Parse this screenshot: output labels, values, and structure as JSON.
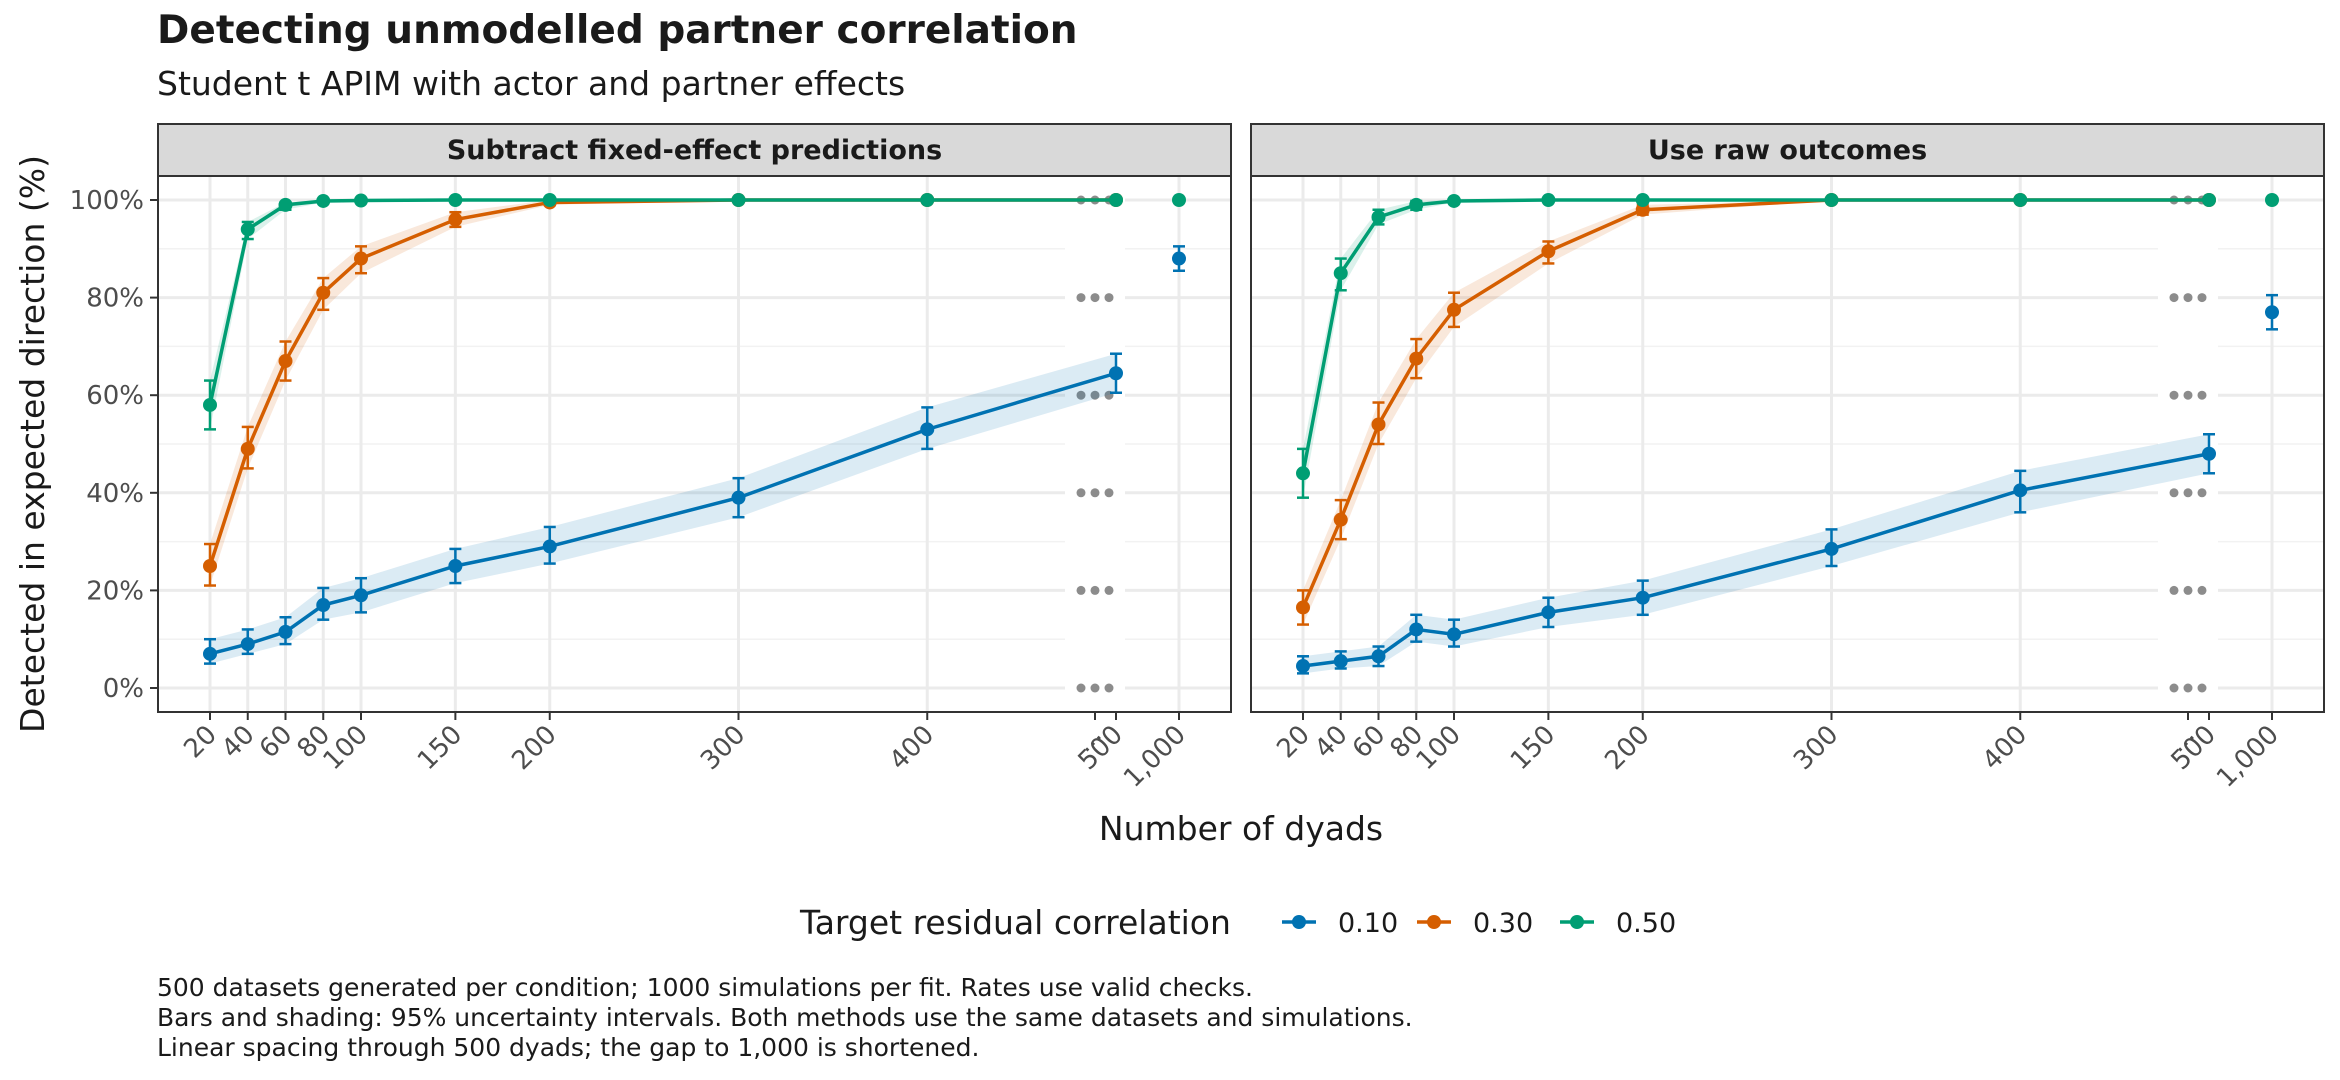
{
  "title": "Detecting unmodelled partner correlation",
  "subtitle": "Student t APIM with actor and partner effects",
  "captions": [
    "500 datasets generated per condition; 1000 simulations per fit. Rates use valid checks.",
    "Bars and shading: 95% uncertainty intervals. Both methods use the same datasets and simulations.",
    "Linear spacing through 500 dyads; the gap to 1,000 is shortened."
  ],
  "colors": {
    "0.10": "#0072b2",
    "0.30": "#d55e00",
    "0.50": "#009e73"
  },
  "chart_data": {
    "type": "line",
    "xlabel": "Number of dyads",
    "ylabel": "Detected in expected direction (%)",
    "x_ticks": [
      "20",
      "40",
      "60",
      "80",
      "100",
      "150",
      "200",
      "300",
      "400",
      "500",
      "...",
      "1,000"
    ],
    "y_ticks": [
      "0%",
      "20%",
      "40%",
      "60%",
      "80%",
      "100%"
    ],
    "ylim": [
      0,
      100
    ],
    "legend": {
      "title": "Target residual correlation",
      "position": "bottom",
      "entries": [
        "0.10",
        "0.30",
        "0.50"
      ]
    },
    "facets": [
      {
        "label": "Subtract fixed-effect predictions",
        "series": [
          {
            "name": "0.10",
            "x": [
              20,
              40,
              60,
              80,
              100,
              150,
              200,
              300,
              400,
              500
            ],
            "y": [
              7,
              9,
              11.5,
              17,
              19,
              25,
              29,
              39,
              53,
              64.5
            ],
            "lo": [
              5,
              7,
              9,
              14,
              15.5,
              21.5,
              25.5,
              35,
              49,
              60.5
            ],
            "hi": [
              10,
              12,
              14.5,
              20.5,
              22.5,
              28.5,
              33,
              43,
              57.5,
              68.5
            ],
            "x_1000": 88,
            "lo_1000": 85.5,
            "hi_1000": 90.5
          },
          {
            "name": "0.30",
            "x": [
              20,
              40,
              60,
              80,
              100,
              150,
              200,
              300,
              400,
              500
            ],
            "y": [
              25,
              49,
              67,
              81,
              88,
              96,
              99.5,
              100,
              100,
              100
            ],
            "lo": [
              21,
              45,
              63,
              77.5,
              85,
              94.5,
              99,
              100,
              100,
              100
            ],
            "hi": [
              29.5,
              53.5,
              71,
              84,
              90.5,
              97.5,
              100,
              100,
              100,
              100
            ],
            "x_1000": null,
            "lo_1000": null,
            "hi_1000": null
          },
          {
            "name": "0.50",
            "x": [
              20,
              40,
              60,
              80,
              100,
              150,
              200,
              300,
              400,
              500
            ],
            "y": [
              58,
              94,
              99,
              99.8,
              99.9,
              100,
              100,
              100,
              100,
              100
            ],
            "lo": [
              53,
              92,
              98,
              99.5,
              99.7,
              100,
              100,
              100,
              100,
              100
            ],
            "hi": [
              63,
              95.5,
              99.5,
              100,
              100,
              100,
              100,
              100,
              100,
              100
            ],
            "x_1000": 100,
            "lo_1000": 100,
            "hi_1000": 100
          }
        ]
      },
      {
        "label": "Use raw outcomes",
        "series": [
          {
            "name": "0.10",
            "x": [
              20,
              40,
              60,
              80,
              100,
              150,
              200,
              300,
              400,
              500
            ],
            "y": [
              4.5,
              5.5,
              6.5,
              12,
              11,
              15.5,
              18.5,
              28.5,
              40.5,
              48
            ],
            "lo": [
              3,
              4,
              4.5,
              9.5,
              8.5,
              12.5,
              15,
              25,
              36,
              44
            ],
            "hi": [
              6.5,
              7.5,
              8.5,
              15,
              14,
              18.5,
              22,
              32.5,
              44.5,
              52
            ],
            "x_1000": 77,
            "lo_1000": 73.5,
            "hi_1000": 80.5
          },
          {
            "name": "0.30",
            "x": [
              20,
              40,
              60,
              80,
              100,
              150,
              200,
              300,
              400,
              500
            ],
            "y": [
              16.5,
              34.5,
              54,
              67.5,
              77.5,
              89.5,
              98,
              100,
              100,
              100
            ],
            "lo": [
              13,
              30.5,
              50,
              63.5,
              74,
              87,
              97,
              100,
              100,
              100
            ],
            "hi": [
              20,
              38.5,
              58.5,
              71.5,
              81,
              91.5,
              99,
              100,
              100,
              100
            ],
            "x_1000": null,
            "lo_1000": null,
            "hi_1000": null
          },
          {
            "name": "0.50",
            "x": [
              20,
              40,
              60,
              80,
              100,
              150,
              200,
              300,
              400,
              500
            ],
            "y": [
              44,
              85,
              96.5,
              99,
              99.8,
              100,
              100,
              100,
              100,
              100
            ],
            "lo": [
              39,
              81.5,
              95,
              98,
              99.5,
              100,
              100,
              100,
              100,
              100
            ],
            "hi": [
              49,
              88,
              98,
              99.8,
              100,
              100,
              100,
              100,
              100,
              100
            ],
            "x_1000": 100,
            "lo_1000": 100,
            "hi_1000": 100
          }
        ]
      }
    ]
  }
}
